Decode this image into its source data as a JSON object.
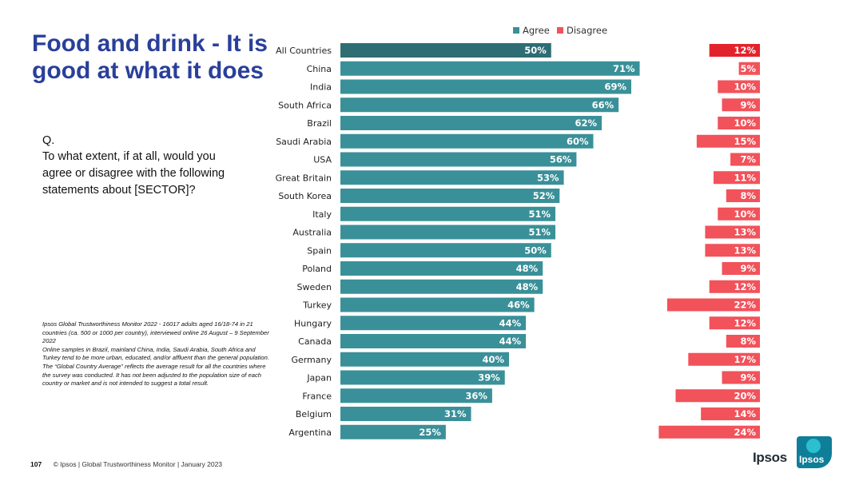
{
  "slide": {
    "title": "Food and drink - It is good at what it does",
    "question_prefix": "Q.",
    "question": "To what extent, if at all, would you agree or disagree with the following statements about [SECTOR]?",
    "notes": [
      "Ipsos Global Trustworthiness Monitor 2022 - 16017 adults aged 16/18-74 in 21 countries (ca. 500 or 1000 per country), interviewed online 26 August – 9 September 2022",
      "Online samples in Brazil, mainland China, India, Saudi Arabia, South Africa and Turkey tend to be more urban, educated, and/or affluent than the general population.",
      "The “Global Country Average” reflects the average result for all the countries where the survey was conducted. It has not been adjusted to the population size of each country or market and is not intended to suggest a total result."
    ],
    "page_number": "107",
    "footer": "© Ipsos | Global Trustworthiness Monitor | January 2023",
    "logo_text": "Ipsos",
    "logo_box_text": "Ipsos"
  },
  "chart_data": {
    "type": "bar",
    "orientation": "horizontal",
    "categories": [
      "All Countries",
      "China",
      "India",
      "South Africa",
      "Brazil",
      "Saudi Arabia",
      "USA",
      "Great Britain",
      "South Korea",
      "Italy",
      "Australia",
      "Spain",
      "Poland",
      "Sweden",
      "Turkey",
      "Hungary",
      "Canada",
      "Germany",
      "Japan",
      "France",
      "Belgium",
      "Argentina"
    ],
    "series": [
      {
        "name": "Agree",
        "color": "#3a9098",
        "highlight_color": "#2d6d73",
        "values": [
          50,
          71,
          69,
          66,
          62,
          60,
          56,
          53,
          52,
          51,
          51,
          50,
          48,
          48,
          46,
          44,
          44,
          40,
          39,
          36,
          31,
          25
        ]
      },
      {
        "name": "Disagree",
        "color": "#f2525a",
        "highlight_color": "#e3232c",
        "values": [
          12,
          5,
          10,
          9,
          10,
          15,
          7,
          11,
          8,
          10,
          13,
          13,
          9,
          12,
          22,
          12,
          8,
          17,
          9,
          20,
          14,
          24
        ]
      }
    ],
    "value_suffix": "%",
    "legend_position": "top",
    "grid": false
  }
}
